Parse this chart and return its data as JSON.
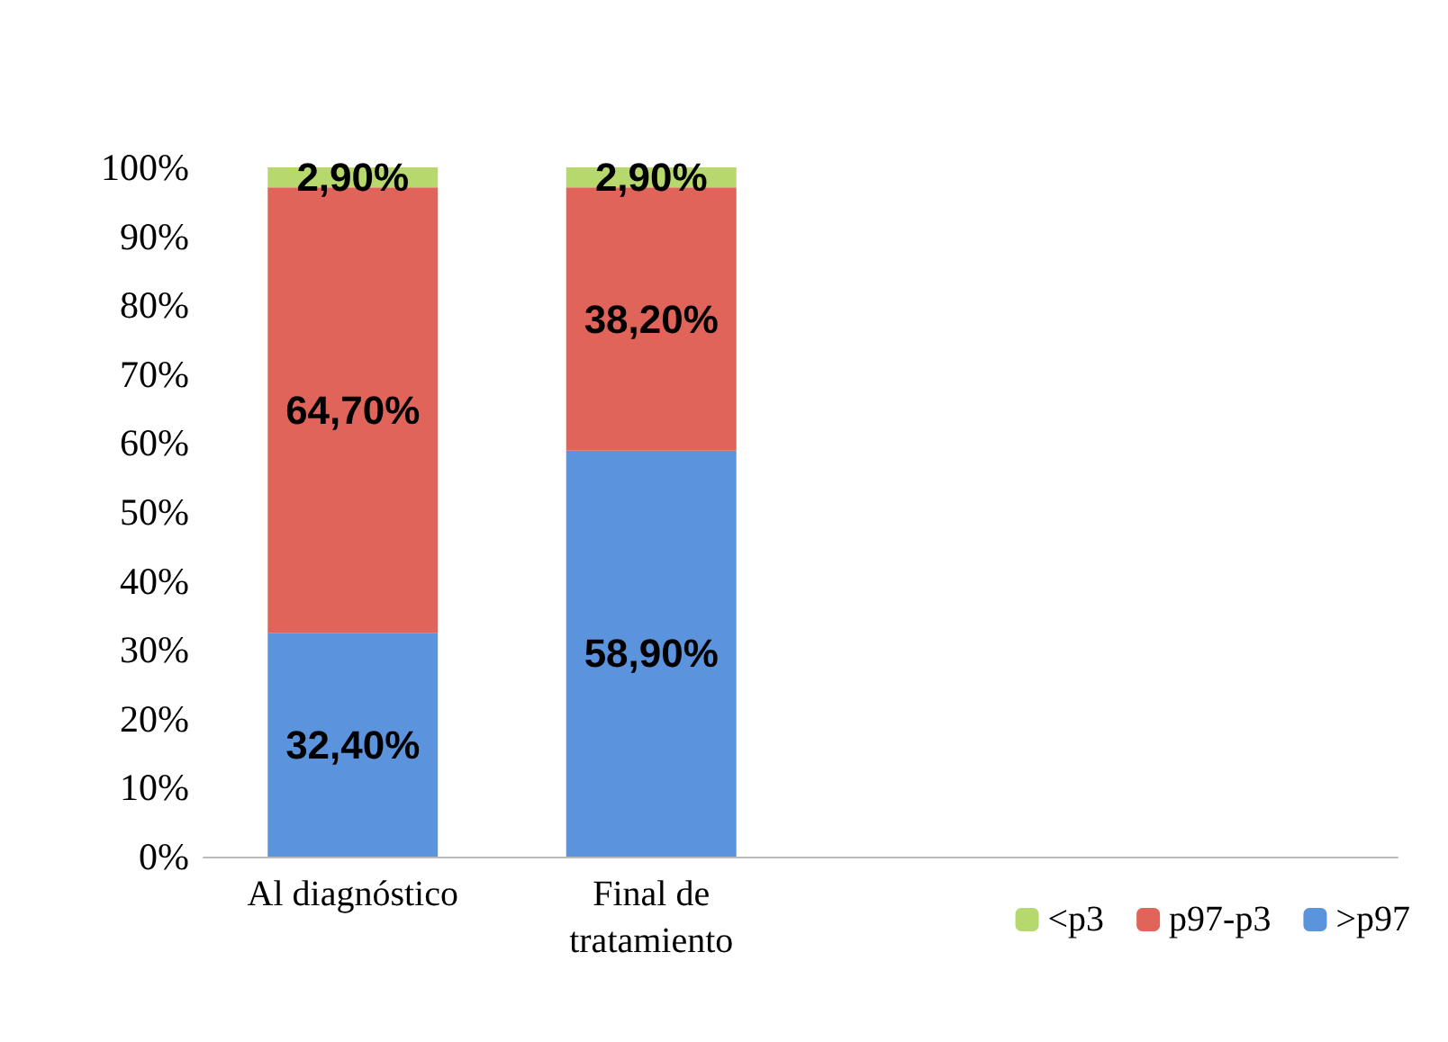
{
  "chart_data": {
    "type": "bar",
    "stacked": true,
    "categories": [
      "Al diagnóstico",
      "Final de\ntratamiento",
      null,
      null
    ],
    "series": [
      {
        "name": ">p97",
        "color": "#5b93dc",
        "values": [
          32.4,
          58.9,
          null,
          null
        ],
        "value_labels": [
          "32,40%",
          "58,90%",
          null,
          null
        ]
      },
      {
        "name": "p97-p3",
        "color": "#e0645a",
        "values": [
          64.7,
          38.2,
          null,
          null
        ],
        "value_labels": [
          "64,70%",
          "38,20%",
          null,
          null
        ]
      },
      {
        "name": "<p3",
        "color": "#b6d86c",
        "values": [
          2.9,
          2.9,
          null,
          null
        ],
        "value_labels": [
          "2,90%",
          "2,90%",
          null,
          null
        ]
      }
    ],
    "ylim": [
      0,
      100
    ],
    "yticks": [
      {
        "value": 0,
        "label": "0%"
      },
      {
        "value": 10,
        "label": "10%"
      },
      {
        "value": 20,
        "label": "20%"
      },
      {
        "value": 30,
        "label": "30%"
      },
      {
        "value": 40,
        "label": "40%"
      },
      {
        "value": 50,
        "label": "50%"
      },
      {
        "value": 60,
        "label": "60%"
      },
      {
        "value": 70,
        "label": "70%"
      },
      {
        "value": 80,
        "label": "80%"
      },
      {
        "value": 90,
        "label": "90%"
      },
      {
        "value": 100,
        "label": "100%"
      }
    ],
    "grid": false,
    "legend": "bottom right"
  }
}
